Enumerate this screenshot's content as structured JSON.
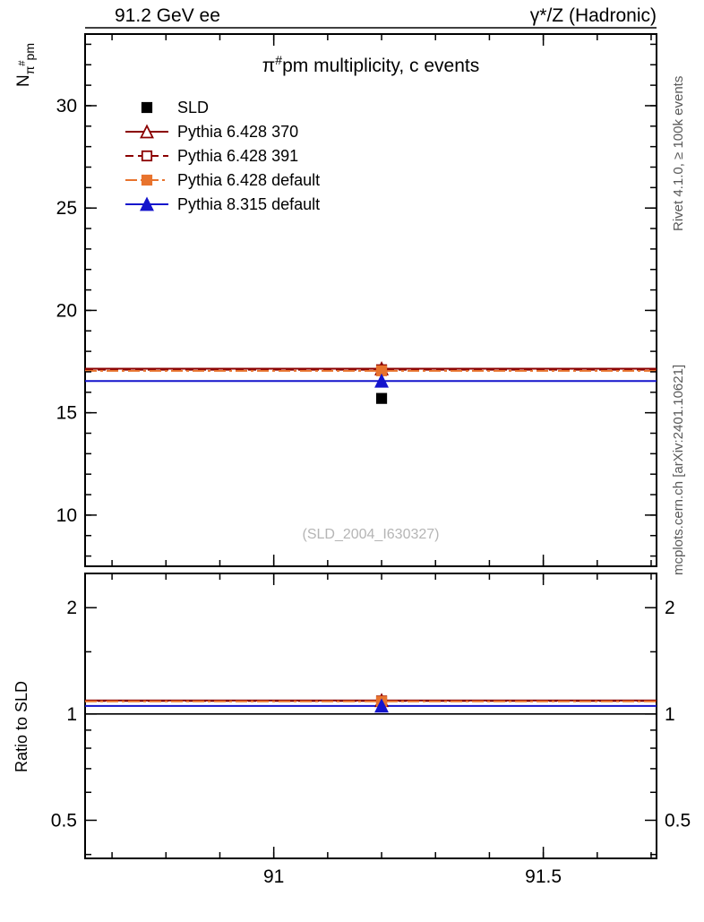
{
  "header": {
    "left": "91.2 GeV ee",
    "right": "γ*/Z (Hadronic)"
  },
  "title": {
    "pi": "π",
    "hash": "#",
    "rest": "pm multiplicity, c events"
  },
  "ylabel": {
    "main": "N",
    "sub_pi": "π",
    "sub_hash": "#",
    "sub_rest": "pm"
  },
  "ratio_ylabel": "Ratio to SLD",
  "watermark": "(SLD_2004_I630327)",
  "side_notes": {
    "top": "Rivet 4.1.0, ≥ 100k events",
    "bottom": "mcplots.cern.ch [arXiv:2401.10621]"
  },
  "chart_data": {
    "type": "line",
    "title": "π#pm multiplicity, c events",
    "xlabel": "",
    "xlim": [
      90.65,
      91.71
    ],
    "xticks": [
      91,
      91.5
    ],
    "xtick_labels": [
      "91",
      "91.5"
    ],
    "x_minor_step": 0.1,
    "legend_position": "top-left",
    "grid": false,
    "panels": [
      {
        "name": "main",
        "yscale": "linear",
        "ylim": [
          7.5,
          33.5
        ],
        "yticks": [
          10,
          15,
          20,
          25,
          30
        ],
        "ytick_labels": [
          "10",
          "15",
          "20",
          "25",
          "30"
        ],
        "y_minor_step": 1
      },
      {
        "name": "ratio",
        "yscale": "log",
        "ylim": [
          0.39,
          2.5
        ],
        "yticks": [
          0.5,
          1,
          2
        ],
        "ytick_labels": [
          "0.5",
          "1",
          "2"
        ],
        "y_minor": [
          0.4,
          0.6,
          0.7,
          0.8,
          0.9,
          1.5
        ],
        "refline": 1
      }
    ],
    "series": [
      {
        "label": "SLD",
        "color": "#000000",
        "marker": "square-filled",
        "line": null,
        "x": 91.2,
        "y": 15.7,
        "yerr": 0.25,
        "ratio": null
      },
      {
        "label": "Pythia 6.428 370",
        "color": "#8b0000",
        "marker": "triangle-open",
        "line": "solid",
        "x": 91.2,
        "y": 17.15,
        "ratio": 1.092
      },
      {
        "label": "Pythia 6.428 391",
        "color": "#8b0000",
        "marker": "square-open",
        "line": "dashed",
        "x": 91.2,
        "y": 17.1,
        "ratio": 1.089
      },
      {
        "label": "Pythia 6.428 default",
        "color": "#e8732d",
        "marker": "square-filled",
        "line": "dashdot",
        "x": 91.2,
        "y": 17.05,
        "ratio": 1.086
      },
      {
        "label": "Pythia 8.315 default",
        "color": "#1414cc",
        "marker": "triangle-filled",
        "line": "solid",
        "x": 91.2,
        "y": 16.55,
        "ratio": 1.054
      }
    ]
  }
}
